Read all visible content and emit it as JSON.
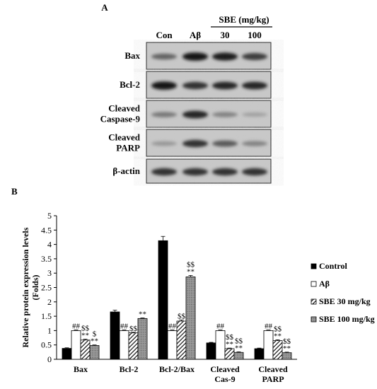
{
  "panel_a": {
    "label": "A",
    "group_header": "SBE (mg/kg)",
    "lanes": [
      "Con",
      "Aβ",
      "30",
      "100"
    ],
    "blots": [
      {
        "label_lines": [
          "Bax"
        ],
        "intensities": [
          0.55,
          0.95,
          0.9,
          0.75
        ]
      },
      {
        "label_lines": [
          "Bcl-2"
        ],
        "intensities": [
          0.95,
          0.8,
          0.85,
          0.85
        ]
      },
      {
        "label_lines": [
          "Cleaved",
          "Caspase-9"
        ],
        "intensities": [
          0.45,
          0.85,
          0.4,
          0.25
        ]
      },
      {
        "label_lines": [
          "Cleaved",
          "PARP"
        ],
        "intensities": [
          0.3,
          0.8,
          0.6,
          0.4
        ]
      },
      {
        "label_lines": [
          "β-actin"
        ],
        "intensities": [
          0.8,
          0.8,
          0.8,
          0.8
        ]
      }
    ]
  },
  "chart_data": {
    "type": "bar",
    "panel_label": "B",
    "ylabel_lines": [
      "Relative protein expression levels",
      "(Folds)"
    ],
    "ylim": [
      0,
      5
    ],
    "yticks": [
      "0",
      "0.5",
      "1",
      "1.5",
      "2",
      "2.5",
      "3",
      "3.5",
      "4",
      "4.5",
      "5"
    ],
    "grid": false,
    "legend_position": "right",
    "categories": [
      {
        "lines": [
          "Bax"
        ]
      },
      {
        "lines": [
          "Bcl-2"
        ]
      },
      {
        "lines": [
          "Bcl-2/Bax"
        ]
      },
      {
        "lines": [
          "Cleaved",
          "Cas-9"
        ]
      },
      {
        "lines": [
          "Cleaved",
          "PARP"
        ]
      }
    ],
    "series": [
      {
        "name": "Control",
        "pattern": "solid-black",
        "values": [
          0.38,
          1.65,
          4.13,
          0.57,
          0.37
        ],
        "errors": [
          0.02,
          0.06,
          0.15,
          0.02,
          0.02
        ],
        "annotations": [
          [],
          [],
          [],
          [],
          []
        ]
      },
      {
        "name": "Aβ",
        "pattern": "white",
        "values": [
          1.0,
          1.0,
          1.0,
          1.0,
          1.0
        ],
        "errors": [
          0.02,
          0.02,
          0.02,
          0.02,
          0.02
        ],
        "annotations": [
          [
            "##"
          ],
          [
            "##"
          ],
          [
            "##"
          ],
          [
            "##"
          ],
          [
            "##"
          ]
        ]
      },
      {
        "name": "SBE 30 mg/kg",
        "pattern": "diagonal-hatch",
        "values": [
          0.67,
          0.92,
          1.33,
          0.37,
          0.65
        ],
        "errors": [
          0.03,
          0.02,
          0.04,
          0.02,
          0.03
        ],
        "annotations": [
          [
            "$$",
            "**"
          ],
          [
            "$$"
          ],
          [
            "$$"
          ],
          [
            "$$",
            "**"
          ],
          [
            "$$",
            "**"
          ]
        ]
      },
      {
        "name": "SBE 100 mg/kg",
        "pattern": "dotted-grey",
        "values": [
          0.48,
          1.42,
          2.87,
          0.24,
          0.23
        ],
        "errors": [
          0.02,
          0.02,
          0.05,
          0.02,
          0.02
        ],
        "annotations": [
          [
            "$",
            "**"
          ],
          [
            "**"
          ],
          [
            "$$",
            "**"
          ],
          [
            "$$",
            "**"
          ],
          [
            "$$",
            "**"
          ]
        ]
      }
    ]
  }
}
